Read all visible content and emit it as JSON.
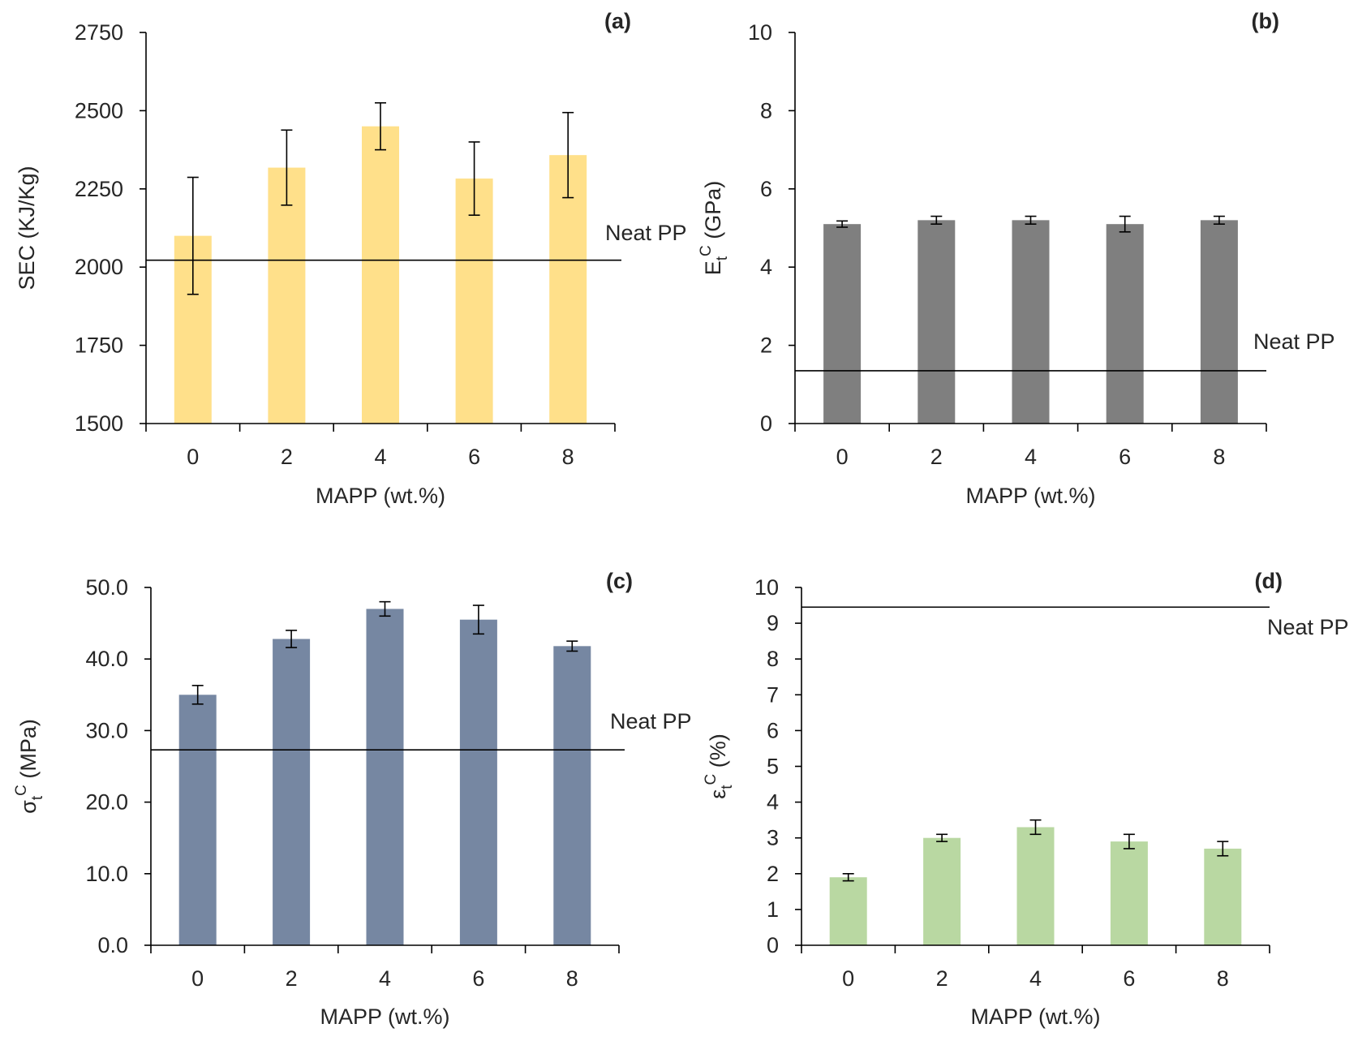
{
  "figure_title": "",
  "chart_data": [
    {
      "panel": "(a)",
      "type": "bar",
      "title": "",
      "xlabel": "MAPP (wt.%)",
      "ylabel": "SEC (KJ/Kg)",
      "categories": [
        "0",
        "2",
        "4",
        "6",
        "8"
      ],
      "values": [
        2100,
        2318,
        2450,
        2283,
        2358
      ],
      "errors": [
        187,
        120,
        75,
        117,
        136
      ],
      "ylim": [
        1500,
        2750
      ],
      "yticks": [
        1500,
        1750,
        2000,
        2250,
        2500,
        2750
      ],
      "ytick_labels": [
        "1500",
        "1750",
        "2000",
        "2250",
        "2500",
        "2750"
      ],
      "bar_color": "#ffe08a",
      "reference": {
        "label": "Neat PP",
        "value": 2022
      },
      "grid": false
    },
    {
      "panel": "(b)",
      "type": "bar",
      "title": "",
      "xlabel": "MAPP (wt.%)",
      "ylabel": "Et C (GPa)",
      "ylabel_parts": {
        "main": "E",
        "sub": "t",
        "sup": "C",
        "rest": " (GPa)"
      },
      "categories": [
        "0",
        "2",
        "4",
        "6",
        "8"
      ],
      "values": [
        5.1,
        5.2,
        5.2,
        5.1,
        5.2
      ],
      "errors": [
        0.08,
        0.1,
        0.1,
        0.2,
        0.1
      ],
      "ylim": [
        0,
        10
      ],
      "yticks": [
        0,
        2,
        4,
        6,
        8,
        10
      ],
      "ytick_labels": [
        "0",
        "2",
        "4",
        "6",
        "8",
        "10"
      ],
      "bar_color": "#7f7f7f",
      "reference": {
        "label": "Neat PP",
        "value": 1.35
      },
      "grid": false
    },
    {
      "panel": "(c)",
      "type": "bar",
      "title": "",
      "xlabel": "MAPP (wt.%)",
      "ylabel": "σt C (MPa)",
      "ylabel_parts": {
        "main": "σ",
        "sub": "t",
        "sup": "C",
        "rest": " (MPa)"
      },
      "categories": [
        "0",
        "2",
        "4",
        "6",
        "8"
      ],
      "values": [
        35.0,
        42.8,
        47.0,
        45.5,
        41.8
      ],
      "errors": [
        1.3,
        1.2,
        1.0,
        2.0,
        0.7
      ],
      "ylim": [
        0,
        50
      ],
      "yticks": [
        0,
        10,
        20,
        30,
        40,
        50
      ],
      "ytick_labels": [
        "0.0",
        "10.0",
        "20.0",
        "30.0",
        "40.0",
        "50.0"
      ],
      "bar_color": "#7687a2",
      "reference": {
        "label": "Neat PP",
        "value": 27.3
      },
      "grid": false
    },
    {
      "panel": "(d)",
      "type": "bar",
      "title": "",
      "xlabel": "MAPP (wt.%)",
      "ylabel": "εt C (%)",
      "ylabel_parts": {
        "main": "ε",
        "sub": "t",
        "sup": "C",
        "rest": " (%)"
      },
      "categories": [
        "0",
        "2",
        "4",
        "6",
        "8"
      ],
      "values": [
        1.9,
        3.0,
        3.3,
        2.9,
        2.7
      ],
      "errors": [
        0.1,
        0.1,
        0.2,
        0.2,
        0.2
      ],
      "ylim": [
        0,
        10
      ],
      "yticks": [
        0,
        1,
        2,
        3,
        4,
        5,
        6,
        7,
        8,
        9,
        10
      ],
      "ytick_labels": [
        "0",
        "1",
        "2",
        "3",
        "4",
        "5",
        "6",
        "7",
        "8",
        "9",
        "10"
      ],
      "bar_color": "#b9d8a2",
      "reference": {
        "label": "Neat PP",
        "value": 9.45
      },
      "grid": false
    }
  ]
}
